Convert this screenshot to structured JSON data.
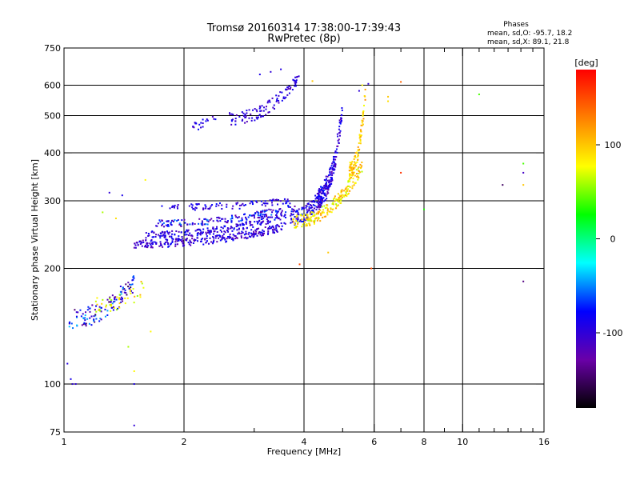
{
  "chart_data": {
    "type": "scatter",
    "title": "Tromsø 20160314 17:38:00-17:39:43",
    "subtitle": "RwPretec (8p)",
    "xlabel": "Frequency [MHz]",
    "ylabel": "Stationary phase Virtual Height [km]",
    "xscale": "log",
    "yscale": "log",
    "xlim": [
      1,
      16
    ],
    "ylim": [
      75,
      750
    ],
    "xticks": [
      {
        "v": 1,
        "label": "1"
      },
      {
        "v": 2,
        "label": "2"
      },
      {
        "v": 4,
        "label": "4"
      },
      {
        "v": 6,
        "label": "6"
      },
      {
        "v": 8,
        "label": "8"
      },
      {
        "v": 10,
        "label": "10"
      },
      {
        "v": 16,
        "label": "16"
      }
    ],
    "xminor": [
      3,
      5,
      7,
      9,
      11,
      12,
      13,
      14,
      15
    ],
    "xgrid": [
      2,
      4,
      6,
      8,
      10
    ],
    "yticks": [
      {
        "v": 75,
        "label": "75"
      },
      {
        "v": 100,
        "label": "100"
      },
      {
        "v": 200,
        "label": "200"
      },
      {
        "v": 300,
        "label": "300"
      },
      {
        "v": 400,
        "label": "400"
      },
      {
        "v": 500,
        "label": "500"
      },
      {
        "v": 600,
        "label": "600"
      },
      {
        "v": 750,
        "label": "750"
      }
    ],
    "ygrid": [
      100,
      200,
      300,
      400,
      500,
      600
    ],
    "grid": true,
    "phase_stats": {
      "heading": "Phases",
      "line_o": "mean, sd,O: -95.7, 18.2",
      "line_x": "mean, sd,X:  89.1, 21.8"
    },
    "colorbar": {
      "unit": "[deg]",
      "range": [
        -180,
        180
      ],
      "ticks": [
        {
          "v": 100,
          "label": "100"
        },
        {
          "v": 0,
          "label": "0"
        },
        {
          "v": -100,
          "label": "-100"
        }
      ]
    },
    "colormap": [
      "#000000",
      "#6a00a8",
      "#0000ff",
      "#00ffff",
      "#00ff00",
      "#ffff00",
      "#ff8000",
      "#ff0000"
    ],
    "traces": [
      {
        "f0": 1.03,
        "f1": 1.5,
        "h0": 148,
        "h1": 185,
        "n": 120,
        "phase": -95,
        "spread": 0.06,
        "noisePhase": 60
      },
      {
        "f0": 1.2,
        "f1": 1.6,
        "h0": 160,
        "h1": 180,
        "n": 40,
        "phase": 80,
        "spread": 0.05,
        "noisePhase": 30
      },
      {
        "f0": 1.5,
        "f1": 3.6,
        "h0": 232,
        "h1": 258,
        "n": 260,
        "phase": -100,
        "spread": 0.025,
        "noisePhase": 25
      },
      {
        "f0": 1.6,
        "f1": 3.6,
        "h0": 245,
        "h1": 275,
        "n": 200,
        "phase": -95,
        "spread": 0.02,
        "noisePhase": 25
      },
      {
        "f0": 1.7,
        "f1": 3.8,
        "h0": 262,
        "h1": 290,
        "n": 160,
        "phase": -90,
        "spread": 0.02,
        "noisePhase": 40
      },
      {
        "f0": 1.75,
        "f1": 3.7,
        "h0": 288,
        "h1": 300,
        "n": 90,
        "phase": -95,
        "spread": 0.02,
        "noisePhase": 20
      },
      {
        "f0": 3.7,
        "f1": 4.8,
        "h0": 270,
        "h1": 380,
        "n": 160,
        "phase": -90,
        "spread": 0.05,
        "noisePhase": 25
      },
      {
        "f0": 4.3,
        "f1": 5.0,
        "h0": 300,
        "h1": 520,
        "n": 140,
        "phase": -100,
        "spread": 0.06,
        "noisePhase": 25
      },
      {
        "f0": 3.75,
        "f1": 5.6,
        "h0": 265,
        "h1": 370,
        "n": 200,
        "phase": 90,
        "spread": 0.04,
        "noisePhase": 30
      },
      {
        "f0": 5.2,
        "f1": 5.7,
        "h0": 360,
        "h1": 560,
        "n": 90,
        "phase": 100,
        "spread": 0.05,
        "noisePhase": 25
      },
      {
        "f0": 2.6,
        "f1": 3.9,
        "h0": 490,
        "h1": 640,
        "n": 110,
        "phase": -100,
        "spread": 0.04,
        "noisePhase": 20
      },
      {
        "f0": 2.1,
        "f1": 2.4,
        "h0": 470,
        "h1": 500,
        "n": 20,
        "phase": -95,
        "spread": 0.03,
        "noisePhase": 20
      }
    ],
    "scatter": [
      {
        "f": 1.05,
        "h": 100,
        "p": -100
      },
      {
        "f": 1.07,
        "h": 100,
        "p": -100
      },
      {
        "f": 1.04,
        "h": 103,
        "p": -90
      },
      {
        "f": 1.02,
        "h": 113,
        "p": -95
      },
      {
        "f": 1.5,
        "h": 100,
        "p": -90
      },
      {
        "f": 1.5,
        "h": 78,
        "p": -100
      },
      {
        "f": 1.5,
        "h": 108,
        "p": 80
      },
      {
        "f": 1.65,
        "h": 137,
        "p": 80
      },
      {
        "f": 1.45,
        "h": 125,
        "p": 60
      },
      {
        "f": 3.9,
        "h": 205,
        "p": 150
      },
      {
        "f": 4.6,
        "h": 220,
        "p": 100
      },
      {
        "f": 5.9,
        "h": 200,
        "p": 150
      },
      {
        "f": 7.0,
        "h": 355,
        "p": 160
      },
      {
        "f": 7.0,
        "h": 612,
        "p": 140
      },
      {
        "f": 6.5,
        "h": 560,
        "p": 100
      },
      {
        "f": 6.5,
        "h": 545,
        "p": 90
      },
      {
        "f": 8.0,
        "h": 285,
        "p": 30
      },
      {
        "f": 11.0,
        "h": 568,
        "p": 40
      },
      {
        "f": 12.6,
        "h": 330,
        "p": -150
      },
      {
        "f": 14.2,
        "h": 185,
        "p": -140
      },
      {
        "f": 14.2,
        "h": 355,
        "p": -110
      },
      {
        "f": 14.2,
        "h": 375,
        "p": 40
      },
      {
        "f": 14.2,
        "h": 330,
        "p": 100
      },
      {
        "f": 5.8,
        "h": 605,
        "p": -100
      },
      {
        "f": 3.3,
        "h": 650,
        "p": -100
      },
      {
        "f": 3.5,
        "h": 660,
        "p": -95
      },
      {
        "f": 4.2,
        "h": 615,
        "p": 100
      },
      {
        "f": 3.1,
        "h": 640,
        "p": -90
      },
      {
        "f": 1.3,
        "h": 315,
        "p": -100
      },
      {
        "f": 1.4,
        "h": 310,
        "p": -90
      },
      {
        "f": 1.6,
        "h": 340,
        "p": 80
      },
      {
        "f": 1.25,
        "h": 280,
        "p": 60
      },
      {
        "f": 1.35,
        "h": 270,
        "p": 90
      },
      {
        "f": 5.6,
        "h": 600,
        "p": 80
      },
      {
        "f": 5.5,
        "h": 580,
        "p": -100
      }
    ]
  }
}
